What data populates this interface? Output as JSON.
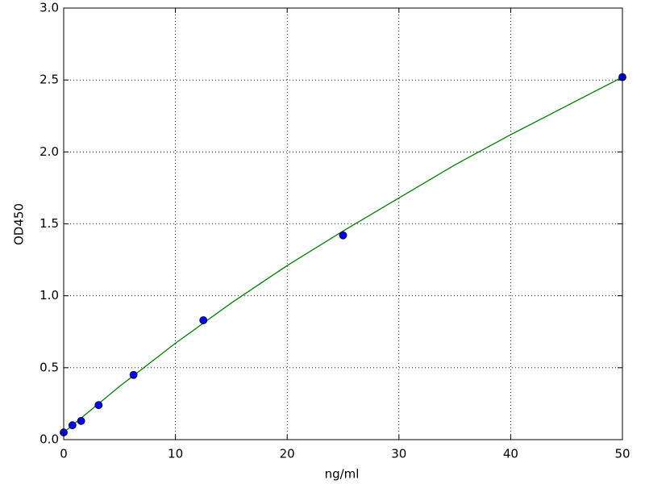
{
  "chart_data": {
    "type": "scatter",
    "x_label": "ng/ml",
    "y_label": "OD450",
    "xlim": [
      0,
      50
    ],
    "ylim": [
      0,
      3
    ],
    "xticks": [
      0,
      10,
      20,
      30,
      40,
      50
    ],
    "yticks": [
      {
        "value": 0,
        "label": "0.0"
      },
      0.5,
      {
        "value": 1,
        "label": "1.0"
      },
      1.5,
      {
        "value": 2,
        "label": "2.0"
      },
      2.5,
      {
        "value": 3,
        "label": "3.0"
      }
    ],
    "grid": true,
    "series": [
      {
        "type": "line",
        "color": "#008000",
        "x": [
          0,
          5,
          10,
          15,
          20,
          25,
          30,
          35,
          40,
          45,
          50
        ],
        "values": [
          0.05,
          0.37,
          0.67,
          0.95,
          1.21,
          1.45,
          1.68,
          1.91,
          2.12,
          2.32,
          2.52
        ]
      },
      {
        "type": "scatter",
        "color": "#0000ff",
        "x": [
          0,
          0.78,
          1.56,
          3.125,
          6.25,
          12.5,
          25,
          50
        ],
        "values": [
          0.05,
          0.1,
          0.13,
          0.24,
          0.45,
          0.83,
          1.42,
          2.52
        ]
      }
    ]
  }
}
